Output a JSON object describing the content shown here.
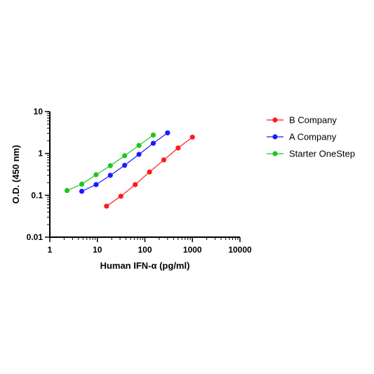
{
  "chart_data": {
    "type": "scatter",
    "xlabel": "Human IFN-α (pg/ml)",
    "ylabel": "O.D. (450 nm)",
    "xscale": "log",
    "yscale": "log",
    "xlim": [
      1,
      10000
    ],
    "ylim": [
      0.01,
      10
    ],
    "x_ticks": [
      {
        "value": 1,
        "label": "1"
      },
      {
        "value": 10,
        "label": "10"
      },
      {
        "value": 100,
        "label": "100"
      },
      {
        "value": 1000,
        "label": "1000"
      },
      {
        "value": 10000,
        "label": "10000"
      }
    ],
    "y_ticks": [
      {
        "value": 0.01,
        "label": "0.01"
      },
      {
        "value": 0.1,
        "label": "0.1"
      },
      {
        "value": 1,
        "label": "1"
      },
      {
        "value": 10,
        "label": "10"
      }
    ],
    "grid": false,
    "legend_position": "right",
    "series": [
      {
        "name": "B Company",
        "color": "#ff1a1a",
        "x": [
          15.6,
          31.2,
          62.5,
          125,
          250,
          500,
          1000
        ],
        "y": [
          0.055,
          0.095,
          0.18,
          0.36,
          0.7,
          1.35,
          2.45
        ]
      },
      {
        "name": "A Company",
        "color": "#1a1aff",
        "x": [
          4.7,
          9.4,
          18.75,
          37.5,
          75,
          150,
          300
        ],
        "y": [
          0.125,
          0.18,
          0.3,
          0.52,
          0.95,
          1.75,
          3.1
        ]
      },
      {
        "name": "Starter OneStep",
        "color": "#22c422",
        "x": [
          2.3,
          4.7,
          9.4,
          18.75,
          37.5,
          75,
          150
        ],
        "y": [
          0.13,
          0.185,
          0.31,
          0.51,
          0.88,
          1.55,
          2.75
        ]
      }
    ]
  }
}
